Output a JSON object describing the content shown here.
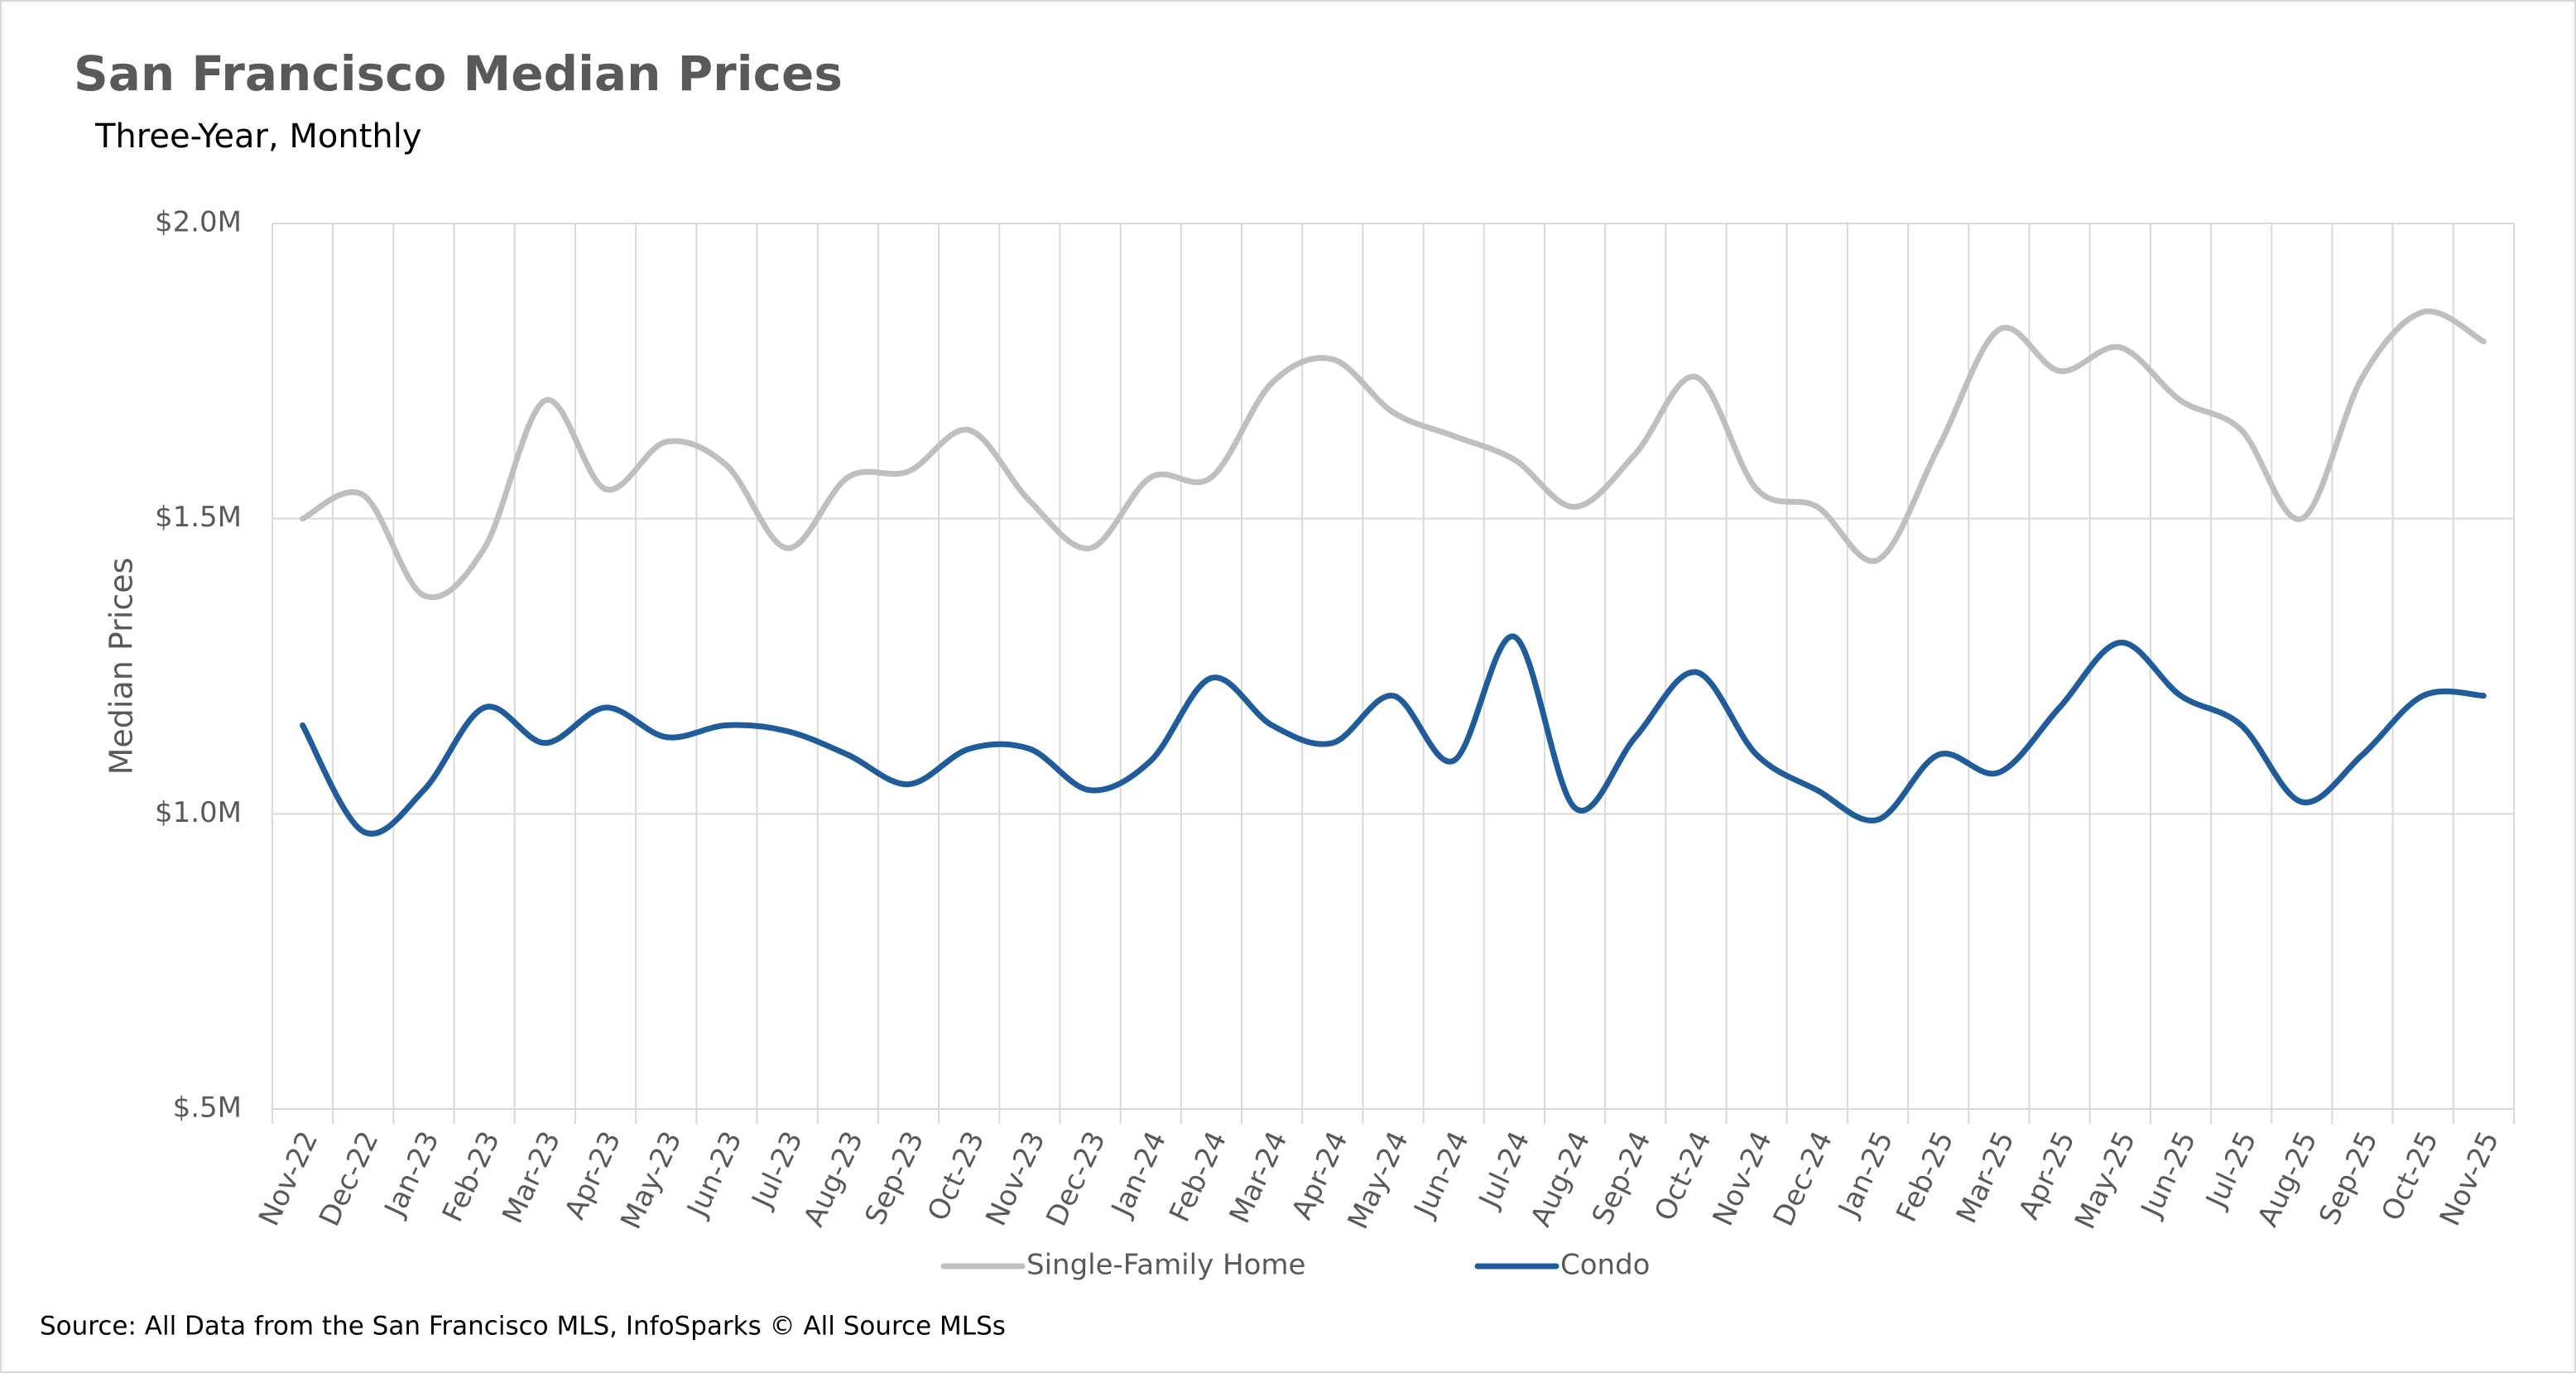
{
  "chart_data": {
    "type": "line",
    "title": "San Francisco Median Prices",
    "subtitle": "Three-Year, Monthly",
    "y_label": "Median Prices",
    "source": "Source: All Data from the San Francisco MLS, InfoSparks © All Source MLSs",
    "categories": [
      "Nov-22",
      "Dec-22",
      "Jan-23",
      "Feb-23",
      "Mar-23",
      "Apr-23",
      "May-23",
      "Jun-23",
      "Jul-23",
      "Aug-23",
      "Sep-23",
      "Oct-23",
      "Nov-23",
      "Dec-23",
      "Jan-24",
      "Feb-24",
      "Mar-24",
      "Apr-24",
      "May-24",
      "Jun-24",
      "Jul-24",
      "Aug-24",
      "Sep-24",
      "Oct-24",
      "Nov-24",
      "Dec-24",
      "Jan-25",
      "Feb-25",
      "Mar-25",
      "Apr-25",
      "May-25",
      "Jun-25",
      "Jul-25",
      "Aug-25",
      "Sep-25",
      "Oct-25",
      "Nov-25"
    ],
    "series": [
      {
        "name": "Single-Family Home",
        "color": "#bfbfbf",
        "values": [
          1500000,
          1540000,
          1370000,
          1450000,
          1700000,
          1550000,
          1630000,
          1590000,
          1450000,
          1570000,
          1580000,
          1650000,
          1530000,
          1450000,
          1570000,
          1570000,
          1730000,
          1770000,
          1680000,
          1640000,
          1600000,
          1520000,
          1610000,
          1740000,
          1550000,
          1520000,
          1430000,
          1620000,
          1820000,
          1750000,
          1790000,
          1700000,
          1650000,
          1500000,
          1740000,
          1850000,
          1800000
        ]
      },
      {
        "name": "Condo",
        "color": "#1f5c99",
        "values": [
          1150000,
          970000,
          1040000,
          1180000,
          1120000,
          1180000,
          1130000,
          1150000,
          1140000,
          1100000,
          1050000,
          1110000,
          1110000,
          1040000,
          1090000,
          1230000,
          1150000,
          1120000,
          1200000,
          1090000,
          1300000,
          1010000,
          1130000,
          1240000,
          1100000,
          1040000,
          990000,
          1100000,
          1070000,
          1180000,
          1290000,
          1200000,
          1150000,
          1020000,
          1100000,
          1200000,
          1200000
        ]
      }
    ],
    "ylim": [
      500000,
      2000000
    ],
    "yticks": [
      {
        "value": 500000,
        "label": "$.5M"
      },
      {
        "value": 1000000,
        "label": "$1.0M"
      },
      {
        "value": 1500000,
        "label": "$1.5M"
      },
      {
        "value": 2000000,
        "label": "$2.0M"
      }
    ],
    "grid": true,
    "legend": "bottom"
  }
}
